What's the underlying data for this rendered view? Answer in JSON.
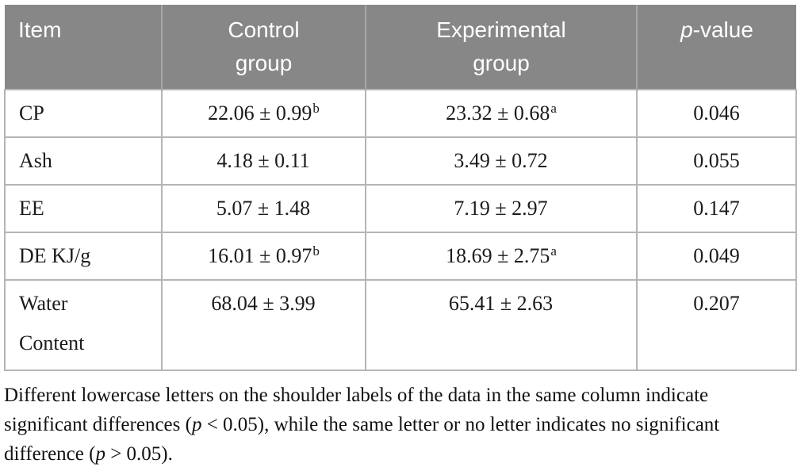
{
  "table": {
    "headers": {
      "item": "Item",
      "control_line1": "Control",
      "control_line2": "group",
      "experimental_line1": "Experimental",
      "experimental_line2": "group",
      "pvalue_italic": "p",
      "pvalue_rest": "-value"
    },
    "rows": [
      {
        "item": "CP",
        "control": "22.06 ± 0.99",
        "control_sup": "b",
        "experimental": "23.32 ± 0.68",
        "experimental_sup": "a",
        "pvalue": "0.046"
      },
      {
        "item": "Ash",
        "control": "4.18 ± 0.11",
        "control_sup": "",
        "experimental": "3.49 ± 0.72",
        "experimental_sup": "",
        "pvalue": "0.055"
      },
      {
        "item": "EE",
        "control": "5.07 ± 1.48",
        "control_sup": "",
        "experimental": "7.19 ± 2.97",
        "experimental_sup": "",
        "pvalue": "0.147"
      },
      {
        "item": "DE KJ/g",
        "control": "16.01 ± 0.97",
        "control_sup": "b",
        "experimental": "18.69 ± 2.75",
        "experimental_sup": "a",
        "pvalue": "0.049"
      },
      {
        "item": "Water",
        "item_line2": "Content",
        "control": "68.04 ± 3.99",
        "control_sup": "",
        "experimental": "65.41 ± 2.63",
        "experimental_sup": "",
        "pvalue": "0.207"
      }
    ],
    "colors": {
      "header_bg": "#878787",
      "header_text": "#ffffff",
      "header_divider": "#a6a6a6",
      "body_border": "#b5b5b5",
      "body_text": "#1b1b1b"
    }
  },
  "footnote": {
    "segments": [
      {
        "text": "Different lowercase letters on the shoulder labels of the data in the same column indicate significant differences (",
        "italic": false
      },
      {
        "text": "p",
        "italic": true
      },
      {
        "text": " < 0.05), while the same letter or no letter indicates no significant difference (",
        "italic": false
      },
      {
        "text": "p",
        "italic": true
      },
      {
        "text": " > 0.05).",
        "italic": false
      }
    ]
  }
}
